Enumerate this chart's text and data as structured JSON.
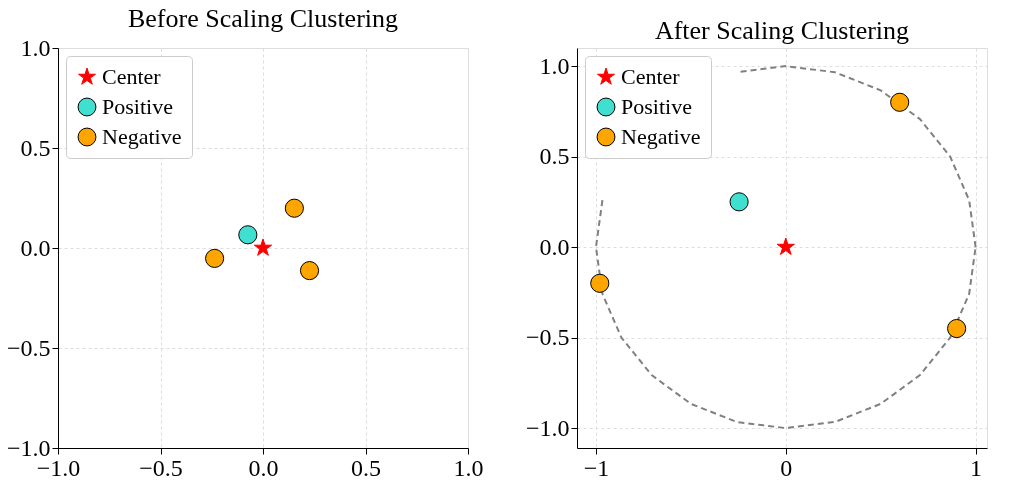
{
  "chart_data": [
    {
      "type": "scatter",
      "title": "Before Scaling Clustering",
      "xlim": [
        -1,
        1
      ],
      "ylim": [
        -1,
        1
      ],
      "xticks": [
        {
          "value": -1,
          "label": "−1.0"
        },
        {
          "value": -0.5,
          "label": "−0.5"
        },
        {
          "value": 0,
          "label": "0.0"
        },
        {
          "value": 0.5,
          "label": "0.5"
        },
        {
          "value": 1,
          "label": "1.0"
        }
      ],
      "yticks": [
        {
          "value": -1,
          "label": "−1.0"
        },
        {
          "value": -0.5,
          "label": "−0.5"
        },
        {
          "value": 0,
          "label": "0.0"
        },
        {
          "value": 0.5,
          "label": "0.5"
        },
        {
          "value": 1,
          "label": "1.0"
        }
      ],
      "grid": true,
      "legend": "top left",
      "series": [
        {
          "name": "Center",
          "color": "#ff0000",
          "marker": "star",
          "x": [
            0
          ],
          "values": [
            0
          ]
        },
        {
          "name": "Positive",
          "color": "#40e0d0",
          "marker": "circle",
          "x": [
            -0.074
          ],
          "values": [
            0.066
          ]
        },
        {
          "name": "Negative",
          "color": "#ffa500",
          "marker": "circle",
          "x": [
            0.153,
            0.227,
            -0.236
          ],
          "values": [
            0.199,
            -0.113,
            -0.052
          ]
        }
      ]
    },
    {
      "type": "scatter",
      "title": "After Scaling Clustering",
      "xlim": [
        -1.1,
        1.06
      ],
      "ylim": [
        -1.11,
        1.1
      ],
      "xticks": [
        {
          "value": -1,
          "label": "−1"
        },
        0,
        1
      ],
      "yticks": [
        {
          "value": -1,
          "label": "−1.0"
        },
        {
          "value": -0.5,
          "label": "−0.5"
        },
        {
          "value": 0,
          "label": "0.0"
        },
        {
          "value": 0.5,
          "label": "0.5"
        },
        {
          "value": 1,
          "label": "1.0"
        }
      ],
      "grid": true,
      "legend": "top left",
      "series": [
        {
          "type": "line",
          "color": "#808080",
          "line_style": "dashed",
          "marker": "none",
          "x": [
            1,
            0.966,
            0.866,
            0.707,
            0.5,
            0.259,
            0,
            -0.259,
            null,
            null,
            null,
            -0.966,
            -1,
            -0.966,
            -0.866,
            -0.707,
            -0.5,
            -0.259,
            0,
            0.259,
            0.5,
            0.707,
            0.866,
            0.966,
            1
          ],
          "values": [
            0,
            0.259,
            0.5,
            0.707,
            0.866,
            0.966,
            1,
            0.966,
            null,
            null,
            null,
            0.259,
            0,
            -0.259,
            -0.5,
            -0.707,
            -0.866,
            -0.966,
            -1,
            -0.966,
            -0.866,
            -0.707,
            -0.5,
            -0.259,
            0
          ]
        },
        {
          "name": "Center",
          "color": "#ff0000",
          "marker": "star",
          "x": [
            0
          ],
          "values": [
            0
          ]
        },
        {
          "name": "Positive",
          "color": "#40e0d0",
          "marker": "circle",
          "x": [
            -0.246
          ],
          "values": [
            0.25
          ]
        },
        {
          "name": "Negative",
          "color": "#ffa500",
          "marker": "circle",
          "x": [
            0.6,
            0.9,
            -0.98
          ],
          "values": [
            0.8,
            -0.45,
            -0.2
          ]
        }
      ]
    }
  ]
}
